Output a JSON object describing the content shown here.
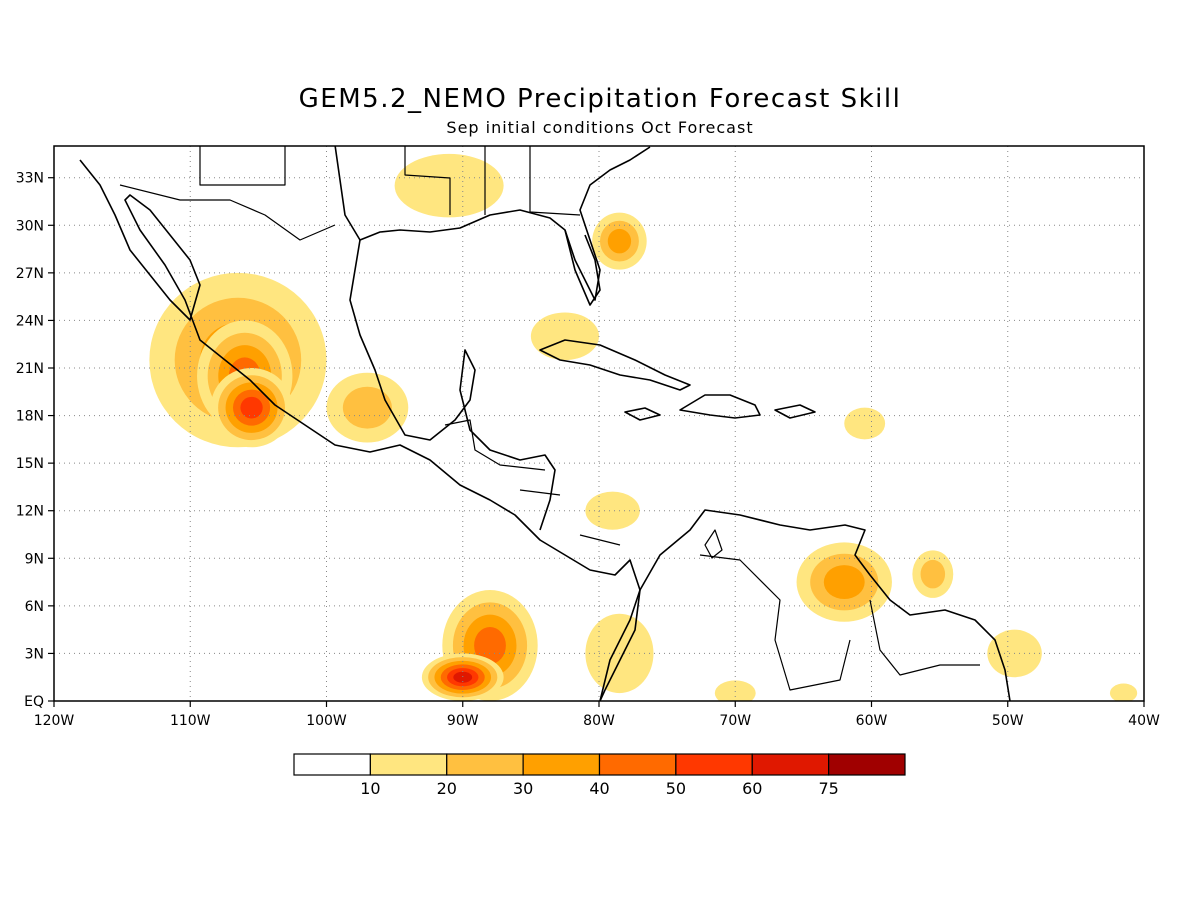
{
  "title": "GEM5.2_NEMO Precipitation Forecast Skill",
  "subtitle": "Sep initial conditions  Oct Forecast",
  "map": {
    "lon_range": [
      -120,
      -40
    ],
    "lat_range": [
      0,
      35
    ],
    "grid": "dotted",
    "x_ticks": [
      {
        "lon": -120,
        "label": "120W"
      },
      {
        "lon": -110,
        "label": "110W"
      },
      {
        "lon": -100,
        "label": "100W"
      },
      {
        "lon": -90,
        "label": "90W"
      },
      {
        "lon": -80,
        "label": "80W"
      },
      {
        "lon": -70,
        "label": "70W"
      },
      {
        "lon": -60,
        "label": "60W"
      },
      {
        "lon": -50,
        "label": "50W"
      },
      {
        "lon": -40,
        "label": "40W"
      }
    ],
    "y_ticks": [
      {
        "lat": 0,
        "label": "EQ"
      },
      {
        "lat": 3,
        "label": "3N"
      },
      {
        "lat": 6,
        "label": "6N"
      },
      {
        "lat": 9,
        "label": "9N"
      },
      {
        "lat": 12,
        "label": "12N"
      },
      {
        "lat": 15,
        "label": "15N"
      },
      {
        "lat": 18,
        "label": "18N"
      },
      {
        "lat": 21,
        "label": "21N"
      },
      {
        "lat": 24,
        "label": "24N"
      },
      {
        "lat": 27,
        "label": "27N"
      },
      {
        "lat": 30,
        "label": "30N"
      },
      {
        "lat": 33,
        "label": "33N"
      }
    ]
  },
  "colorbar": {
    "colors": [
      "#ffffff",
      "#ffe680",
      "#ffc040",
      "#ffa000",
      "#ff6a00",
      "#ff3800",
      "#e01800",
      "#a00000"
    ],
    "labels": [
      "10",
      "20",
      "30",
      "40",
      "50",
      "60",
      "75"
    ]
  },
  "skill_regions": [
    {
      "name": "west-mexico",
      "lon": -106.5,
      "lat": 21.5,
      "rlon": 6.5,
      "rlat": 5.5,
      "level": 3
    },
    {
      "name": "west-mexico-core",
      "lon": -106.0,
      "lat": 20.5,
      "rlon": 3.5,
      "rlat": 3.5,
      "level": 4
    },
    {
      "name": "west-mexico-box",
      "lon": -105.5,
      "lat": 18.5,
      "rlon": 3.0,
      "rlat": 2.5,
      "level": 5
    },
    {
      "name": "mexico-gulf-south",
      "lon": -97.0,
      "lat": 18.5,
      "rlon": 3.0,
      "rlat": 2.2,
      "level": 2
    },
    {
      "name": "gulf-coast-us",
      "lon": -91.0,
      "lat": 32.5,
      "rlon": 4.0,
      "rlat": 2.0,
      "level": 1
    },
    {
      "name": "atlantic-off-florida",
      "lon": -78.5,
      "lat": 29.0,
      "rlon": 2.0,
      "rlat": 1.8,
      "level": 3
    },
    {
      "name": "cuba-west",
      "lon": -82.5,
      "lat": 23.0,
      "rlon": 2.5,
      "rlat": 1.5,
      "level": 1
    },
    {
      "name": "caribbean-central",
      "lon": -79.0,
      "lat": 12.0,
      "rlon": 2.0,
      "rlat": 1.2,
      "level": 1
    },
    {
      "name": "pacific-colombia",
      "lon": -88.0,
      "lat": 3.5,
      "rlon": 3.5,
      "rlat": 3.5,
      "level": 4
    },
    {
      "name": "pacific-colombia-core",
      "lon": -90.0,
      "lat": 1.5,
      "rlon": 3.0,
      "rlat": 1.5,
      "level": 6
    },
    {
      "name": "colombia-coast",
      "lon": -78.5,
      "lat": 3.0,
      "rlon": 2.5,
      "rlat": 2.5,
      "level": 1
    },
    {
      "name": "venezuela-guyana",
      "lon": -62.0,
      "lat": 7.5,
      "rlon": 3.5,
      "rlat": 2.5,
      "level": 3
    },
    {
      "name": "suriname-east",
      "lon": -55.5,
      "lat": 8.0,
      "rlon": 1.5,
      "rlat": 1.5,
      "level": 2
    },
    {
      "name": "antilles-east",
      "lon": -60.5,
      "lat": 17.5,
      "rlon": 1.5,
      "rlat": 1.0,
      "level": 1
    },
    {
      "name": "amazon-mouth",
      "lon": -49.5,
      "lat": 3.0,
      "rlon": 2.0,
      "rlat": 1.5,
      "level": 1
    },
    {
      "name": "ecuador-coast",
      "lon": -70.0,
      "lat": 0.5,
      "rlon": 1.5,
      "rlat": 0.8,
      "level": 1
    },
    {
      "name": "brazil-east",
      "lon": -41.5,
      "lat": 0.5,
      "rlon": 1.0,
      "rlat": 0.6,
      "level": 1
    }
  ]
}
